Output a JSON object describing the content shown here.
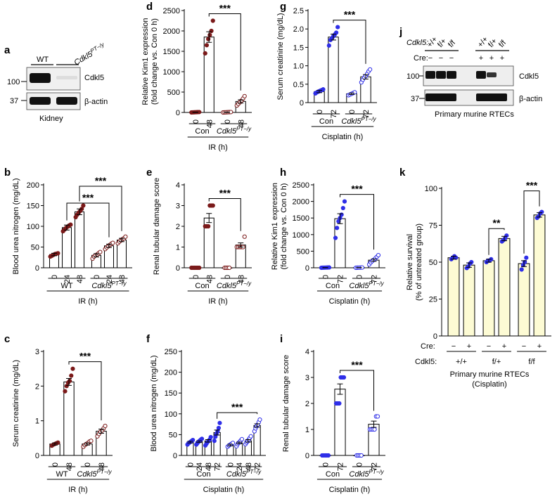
{
  "colors": {
    "maroon": "#7b1a1a",
    "blue": "#2f2fe8",
    "cream": "#fdfbd4",
    "black": "#000000"
  },
  "panels": {
    "a": {
      "letter": "a",
      "lanes": [
        "WT",
        "Cdkl5PT−/y"
      ],
      "lane_labels": {
        "wt": "WT",
        "ko": "Cdkl5",
        "ko_sup": "PT−/y"
      },
      "bands": [
        "Cdkl5",
        "β-actin"
      ],
      "mw": [
        "100",
        "37"
      ],
      "tissue": "Kidney"
    },
    "j": {
      "letter": "j",
      "genotype_label": "Cdkl5:",
      "genotypes": [
        "+/+",
        "f/+",
        "f/f",
        "+/+",
        "f/+",
        "f/f"
      ],
      "cre_label": "Cre:",
      "cre": [
        "−",
        "−",
        "−",
        "+",
        "+",
        "+"
      ],
      "bands": [
        "Cdkl5",
        "β-actin"
      ],
      "mw": [
        "100",
        "37"
      ],
      "caption": "Primary murine RTECs"
    }
  },
  "chart_data": [
    {
      "id": "b",
      "type": "bar",
      "color": "maroon",
      "ylabel": "Blood urea nitrogen (mg/dL)",
      "ylim": [
        0,
        200
      ],
      "yticks": [
        0,
        50,
        100,
        150,
        200
      ],
      "categories": [
        "0",
        "24",
        "48",
        "0",
        "24",
        "48"
      ],
      "values": [
        32,
        97,
        135,
        30,
        53,
        67
      ],
      "errors": [
        3,
        6,
        7,
        4,
        4,
        4
      ],
      "points": [
        [
          27,
          29,
          31,
          33,
          34,
          35
        ],
        [
          88,
          92,
          96,
          99,
          102,
          104
        ],
        [
          122,
          128,
          133,
          137,
          142,
          150
        ],
        [
          22,
          27,
          30,
          32,
          35,
          38
        ],
        [
          45,
          49,
          52,
          55,
          58,
          60
        ],
        [
          59,
          63,
          66,
          69,
          71,
          75
        ]
      ],
      "groups": [
        {
          "label": "WT",
          "from": 0,
          "to": 2
        },
        {
          "label": "Cdkl5",
          "sup": "PT−/y",
          "from": 3,
          "to": 5
        }
      ],
      "xlabel": "IR (h)",
      "significance": [
        {
          "from": 1,
          "to": 4,
          "label": "***"
        },
        {
          "from": 2,
          "to": 5,
          "label": "***"
        }
      ]
    },
    {
      "id": "c",
      "type": "bar",
      "color": "maroon",
      "ylabel": "Serum creatinine (mg/dL)",
      "ylim": [
        0,
        3
      ],
      "yticks": [
        0,
        1,
        2,
        3
      ],
      "categories": [
        "0",
        "48",
        "0",
        "48"
      ],
      "values": [
        0.33,
        2.12,
        0.33,
        0.7
      ],
      "errors": [
        0.03,
        0.1,
        0.03,
        0.06
      ],
      "points": [
        [
          0.28,
          0.31,
          0.33,
          0.35,
          0.37
        ],
        [
          1.85,
          2.0,
          2.1,
          2.15,
          2.3,
          2.5
        ],
        [
          0.25,
          0.3,
          0.33,
          0.36,
          0.4,
          0.42
        ],
        [
          0.55,
          0.62,
          0.68,
          0.72,
          0.78,
          0.85
        ]
      ],
      "groups": [
        {
          "label": "WT",
          "from": 0,
          "to": 1
        },
        {
          "label": "Cdkl5",
          "sup": "PT−/y",
          "from": 2,
          "to": 3
        }
      ],
      "xlabel": "IR (h)",
      "significance": [
        {
          "from": 1,
          "to": 3,
          "label": "***"
        }
      ]
    },
    {
      "id": "d",
      "type": "bar",
      "color": "maroon",
      "ylabel": "Relative Kim1 expression (fold change vs. Con 0 h)",
      "ylim": [
        0,
        2500
      ],
      "yticks": [
        0,
        500,
        1000,
        1500,
        2000,
        2500
      ],
      "categories": [
        "0",
        "48",
        "0",
        "48"
      ],
      "values": [
        5,
        1850,
        5,
        270
      ],
      "errors": [
        2,
        130,
        2,
        40
      ],
      "points": [
        [
          0,
          2,
          4,
          6,
          8,
          10
        ],
        [
          1450,
          1650,
          1800,
          1900,
          2000,
          2250
        ],
        [
          0,
          2,
          4,
          6,
          8,
          10
        ],
        [
          170,
          210,
          250,
          290,
          340,
          400
        ]
      ],
      "groups": [
        {
          "label": "Con",
          "from": 0,
          "to": 1
        },
        {
          "label": "Cdkl5",
          "sup": "PT−/y",
          "from": 2,
          "to": 3
        }
      ],
      "xlabel": "IR (h)",
      "significance": [
        {
          "from": 1,
          "to": 3,
          "label": "***"
        }
      ]
    },
    {
      "id": "e",
      "type": "bar",
      "color": "maroon",
      "ylabel": "Renal tubular damage score",
      "ylim": [
        0,
        4
      ],
      "yticks": [
        0,
        1,
        2,
        3,
        4
      ],
      "categories": [
        "0",
        "48",
        "0",
        "48"
      ],
      "values": [
        0,
        2.4,
        0,
        1.1
      ],
      "errors": [
        0,
        0.22,
        0,
        0.1
      ],
      "points": [
        [
          0,
          0,
          0,
          0,
          0,
          0
        ],
        [
          2,
          2,
          2,
          3,
          3,
          3
        ],
        [
          0,
          0,
          0,
          0
        ],
        [
          1,
          1,
          1,
          1,
          1,
          1.5
        ]
      ],
      "groups": [
        {
          "label": "Con",
          "from": 0,
          "to": 1
        },
        {
          "label": "Cdkl5",
          "sup": "PT−/y",
          "from": 2,
          "to": 3
        }
      ],
      "xlabel": "IR (h)",
      "significance": [
        {
          "from": 1,
          "to": 3,
          "label": "***"
        }
      ]
    },
    {
      "id": "f",
      "type": "bar",
      "color": "blue",
      "ylabel": "Blood urea nitrogen (mg/dL)",
      "ylim": [
        0,
        250
      ],
      "yticks": [
        0,
        50,
        100,
        150,
        200,
        250
      ],
      "categories": [
        "0",
        "24",
        "48",
        "72",
        "0",
        "24",
        "48",
        "72"
      ],
      "values": [
        32,
        33,
        35,
        55,
        25,
        30,
        35,
        72
      ],
      "errors": [
        2,
        2,
        3,
        6,
        2,
        2,
        3,
        4
      ],
      "points": [
        [
          26,
          29,
          31,
          33,
          35,
          37
        ],
        [
          26,
          29,
          32,
          34,
          36,
          38,
          40
        ],
        [
          24,
          28,
          32,
          35,
          38,
          44
        ],
        [
          35,
          45,
          52,
          58,
          66,
          78
        ],
        [
          21,
          24,
          26,
          28,
          30
        ],
        [
          22,
          27,
          30,
          33,
          36,
          39
        ],
        [
          27,
          31,
          34,
          38,
          42,
          46
        ],
        [
          58,
          65,
          70,
          74,
          80,
          86
        ]
      ],
      "groups": [
        {
          "label": "Con",
          "from": 0,
          "to": 3
        },
        {
          "label": "Cdkl5",
          "sup": "PT−/y",
          "from": 4,
          "to": 7
        }
      ],
      "xlabel": "Cisplatin (h)",
      "significance": [
        {
          "from": 3,
          "to": 7,
          "label": "***"
        }
      ]
    },
    {
      "id": "g",
      "type": "bar",
      "color": "blue",
      "ylabel": "Serum creatinine (mg/dL)",
      "ylim": [
        0,
        2.5
      ],
      "yticks": [
        0,
        0.5,
        1.0,
        1.5,
        2.0,
        2.5
      ],
      "categories": [
        "0",
        "72",
        "0",
        "72"
      ],
      "values": [
        0.3,
        1.78,
        0.24,
        0.7
      ],
      "errors": [
        0.03,
        0.08,
        0.02,
        0.06
      ],
      "points": [
        [
          0.25,
          0.28,
          0.3,
          0.32,
          0.34,
          0.36
        ],
        [
          1.55,
          1.7,
          1.75,
          1.8,
          1.85,
          1.9,
          2.05
        ],
        [
          0.2,
          0.22,
          0.24,
          0.26,
          0.28
        ],
        [
          0.55,
          0.62,
          0.68,
          0.72,
          0.78,
          0.85,
          0.9
        ]
      ],
      "groups": [
        {
          "label": "Con",
          "from": 0,
          "to": 1
        },
        {
          "label": "Cdkl5",
          "sup": "PT−/y",
          "from": 2,
          "to": 3
        }
      ],
      "xlabel": "Cisplatin (h)",
      "significance": [
        {
          "from": 1,
          "to": 3,
          "label": "***"
        }
      ]
    },
    {
      "id": "h",
      "type": "bar",
      "color": "blue",
      "ylabel": "Relative Kim1 expression (fold change vs. Con 0 h)",
      "ylim": [
        0,
        2500
      ],
      "yticks": [
        0,
        500,
        1000,
        1500,
        2000,
        2500
      ],
      "categories": [
        "0",
        "72",
        "0",
        "72"
      ],
      "values": [
        5,
        1480,
        5,
        230
      ],
      "errors": [
        2,
        150,
        2,
        35
      ],
      "points": [
        [
          0,
          2,
          4,
          6,
          8,
          10
        ],
        [
          900,
          1200,
          1400,
          1500,
          1600,
          1800,
          2000
        ],
        [
          0,
          2,
          4,
          6,
          8
        ],
        [
          100,
          160,
          200,
          240,
          280,
          330,
          380
        ]
      ],
      "groups": [
        {
          "label": "Con",
          "from": 0,
          "to": 1
        },
        {
          "label": "Cdkl5",
          "sup": "PT−/y",
          "from": 2,
          "to": 3
        }
      ],
      "xlabel": "Cisplatin (h)",
      "significance": [
        {
          "from": 1,
          "to": 3,
          "label": "***"
        }
      ]
    },
    {
      "id": "i",
      "type": "bar",
      "color": "blue",
      "ylabel": "Renal tubular damage score",
      "ylim": [
        0,
        4
      ],
      "yticks": [
        0,
        1,
        2,
        3,
        4
      ],
      "categories": [
        "0",
        "72",
        "0",
        "72"
      ],
      "values": [
        0,
        2.55,
        0,
        1.2
      ],
      "errors": [
        0,
        0.2,
        0,
        0.12
      ],
      "points": [
        [
          0,
          0,
          0,
          0,
          0
        ],
        [
          2,
          2,
          2,
          3,
          3,
          3
        ],
        [
          0,
          0,
          0,
          0
        ],
        [
          1,
          1,
          1,
          1,
          1.5,
          1.5
        ]
      ],
      "groups": [
        {
          "label": "Con",
          "from": 0,
          "to": 1
        },
        {
          "label": "Cdkl5",
          "sup": "PT−/y",
          "from": 2,
          "to": 3
        }
      ],
      "xlabel": "Cisplatin (h)",
      "significance": [
        {
          "from": 1,
          "to": 3,
          "label": "***"
        }
      ]
    },
    {
      "id": "k",
      "type": "bar",
      "color": "cream",
      "ylabel": "Relative survival (% of untreated group)",
      "ylim": [
        0,
        100
      ],
      "yticks": [
        0,
        25,
        50,
        75,
        100
      ],
      "categories": [
        "−",
        "+",
        "−",
        "+",
        "−",
        "+"
      ],
      "values": [
        53,
        48,
        51,
        66,
        49,
        82
      ],
      "errors": [
        1,
        1.5,
        1,
        1.5,
        2,
        1.5
      ],
      "points": [
        [
          52,
          53,
          54,
          53
        ],
        [
          46,
          47,
          49,
          50
        ],
        [
          50,
          51,
          51,
          52
        ],
        [
          64,
          65,
          66,
          68
        ],
        [
          45,
          48,
          50,
          53
        ],
        [
          80,
          81,
          83,
          84
        ]
      ],
      "groups": [
        {
          "label": "+/+",
          "from": 0,
          "to": 1
        },
        {
          "label": "f/+",
          "from": 2,
          "to": 3
        },
        {
          "label": "f/f",
          "from": 4,
          "to": 5
        }
      ],
      "row_labels": {
        "cre": "Cre:",
        "genotype": "Cdkl5:"
      },
      "xlabel": "Primary murine RTECs",
      "xlabel2": "(Cisplatin)",
      "significance": [
        {
          "from": 2,
          "to": 3,
          "label": "**"
        },
        {
          "from": 4,
          "to": 5,
          "label": "***"
        }
      ]
    }
  ]
}
